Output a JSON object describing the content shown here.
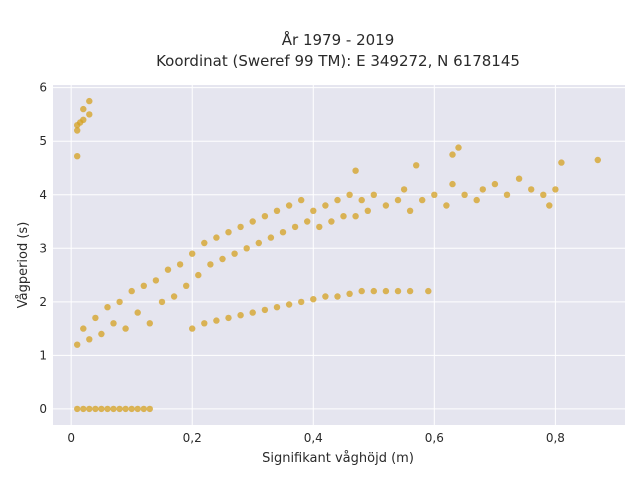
{
  "chart_data": {
    "type": "scatter",
    "title": "År 1979 - 2019",
    "subtitle": "Koordinat (Sweref 99 TM): E 349272, N 6178145",
    "xlabel": "Signifikant våghöjd (m)",
    "ylabel": "Vågperiod (s)",
    "xlim": [
      -0.03,
      0.915
    ],
    "ylim": [
      -0.3,
      6.05
    ],
    "xticks": [
      0,
      0.2,
      0.4,
      0.6,
      0.8
    ],
    "xtick_labels": [
      "0",
      "0,2",
      "0,4",
      "0,6",
      "0,8"
    ],
    "yticks": [
      0,
      1,
      2,
      3,
      4,
      5,
      6
    ],
    "ytick_labels": [
      "0",
      "1",
      "2",
      "3",
      "4",
      "5",
      "6"
    ],
    "grid": true,
    "background": "#e5e5ef",
    "marker_color": "#d4a020",
    "series": [
      {
        "values": [
          [
            0.01,
            0
          ],
          [
            0.02,
            0
          ],
          [
            0.03,
            0
          ],
          [
            0.04,
            0
          ],
          [
            0.05,
            0
          ],
          [
            0.06,
            0
          ],
          [
            0.07,
            0
          ],
          [
            0.08,
            0
          ],
          [
            0.09,
            0
          ],
          [
            0.1,
            0
          ],
          [
            0.11,
            0
          ],
          [
            0.12,
            0
          ],
          [
            0.13,
            0
          ],
          [
            0.01,
            5.2
          ],
          [
            0.01,
            5.3
          ],
          [
            0.015,
            5.35
          ],
          [
            0.02,
            5.4
          ],
          [
            0.02,
            5.6
          ],
          [
            0.03,
            5.5
          ],
          [
            0.03,
            5.75
          ],
          [
            0.01,
            4.72
          ],
          [
            0.01,
            1.2
          ],
          [
            0.02,
            1.5
          ],
          [
            0.03,
            1.3
          ],
          [
            0.04,
            1.7
          ],
          [
            0.05,
            1.4
          ],
          [
            0.06,
            1.9
          ],
          [
            0.07,
            1.6
          ],
          [
            0.08,
            2.0
          ],
          [
            0.09,
            1.5
          ],
          [
            0.1,
            2.2
          ],
          [
            0.11,
            1.8
          ],
          [
            0.12,
            2.3
          ],
          [
            0.13,
            1.6
          ],
          [
            0.14,
            2.4
          ],
          [
            0.15,
            2.0
          ],
          [
            0.16,
            2.6
          ],
          [
            0.17,
            2.1
          ],
          [
            0.18,
            2.7
          ],
          [
            0.19,
            2.3
          ],
          [
            0.2,
            2.9
          ],
          [
            0.21,
            2.5
          ],
          [
            0.22,
            3.1
          ],
          [
            0.23,
            2.7
          ],
          [
            0.24,
            3.2
          ],
          [
            0.25,
            2.8
          ],
          [
            0.26,
            3.3
          ],
          [
            0.27,
            2.9
          ],
          [
            0.28,
            3.4
          ],
          [
            0.29,
            3.0
          ],
          [
            0.3,
            3.5
          ],
          [
            0.31,
            3.1
          ],
          [
            0.32,
            3.6
          ],
          [
            0.33,
            3.2
          ],
          [
            0.34,
            3.7
          ],
          [
            0.35,
            3.3
          ],
          [
            0.36,
            3.8
          ],
          [
            0.37,
            3.4
          ],
          [
            0.38,
            3.9
          ],
          [
            0.39,
            3.5
          ],
          [
            0.4,
            3.7
          ],
          [
            0.41,
            3.4
          ],
          [
            0.42,
            3.8
          ],
          [
            0.43,
            3.5
          ],
          [
            0.44,
            3.9
          ],
          [
            0.45,
            3.6
          ],
          [
            0.46,
            4.0
          ],
          [
            0.47,
            3.6
          ],
          [
            0.48,
            3.9
          ],
          [
            0.49,
            3.7
          ],
          [
            0.5,
            4.0
          ],
          [
            0.52,
            3.8
          ],
          [
            0.54,
            3.9
          ],
          [
            0.55,
            4.1
          ],
          [
            0.56,
            3.7
          ],
          [
            0.58,
            3.9
          ],
          [
            0.6,
            4.0
          ],
          [
            0.62,
            3.8
          ],
          [
            0.63,
            4.2
          ],
          [
            0.65,
            4.0
          ],
          [
            0.67,
            3.9
          ],
          [
            0.68,
            4.1
          ],
          [
            0.7,
            4.2
          ],
          [
            0.72,
            4.0
          ],
          [
            0.74,
            4.3
          ],
          [
            0.76,
            4.1
          ],
          [
            0.78,
            4.0
          ],
          [
            0.79,
            3.8
          ],
          [
            0.8,
            4.1
          ],
          [
            0.81,
            4.6
          ],
          [
            0.87,
            4.65
          ],
          [
            0.64,
            4.88
          ],
          [
            0.63,
            4.75
          ],
          [
            0.57,
            4.55
          ],
          [
            0.47,
            4.45
          ],
          [
            0.2,
            1.5
          ],
          [
            0.22,
            1.6
          ],
          [
            0.24,
            1.65
          ],
          [
            0.26,
            1.7
          ],
          [
            0.28,
            1.75
          ],
          [
            0.3,
            1.8
          ],
          [
            0.32,
            1.85
          ],
          [
            0.34,
            1.9
          ],
          [
            0.36,
            1.95
          ],
          [
            0.38,
            2.0
          ],
          [
            0.4,
            2.05
          ],
          [
            0.42,
            2.1
          ],
          [
            0.44,
            2.1
          ],
          [
            0.46,
            2.15
          ],
          [
            0.48,
            2.2
          ],
          [
            0.5,
            2.2
          ],
          [
            0.52,
            2.2
          ],
          [
            0.54,
            2.2
          ],
          [
            0.56,
            2.2
          ],
          [
            0.59,
            2.2
          ]
        ]
      }
    ]
  }
}
